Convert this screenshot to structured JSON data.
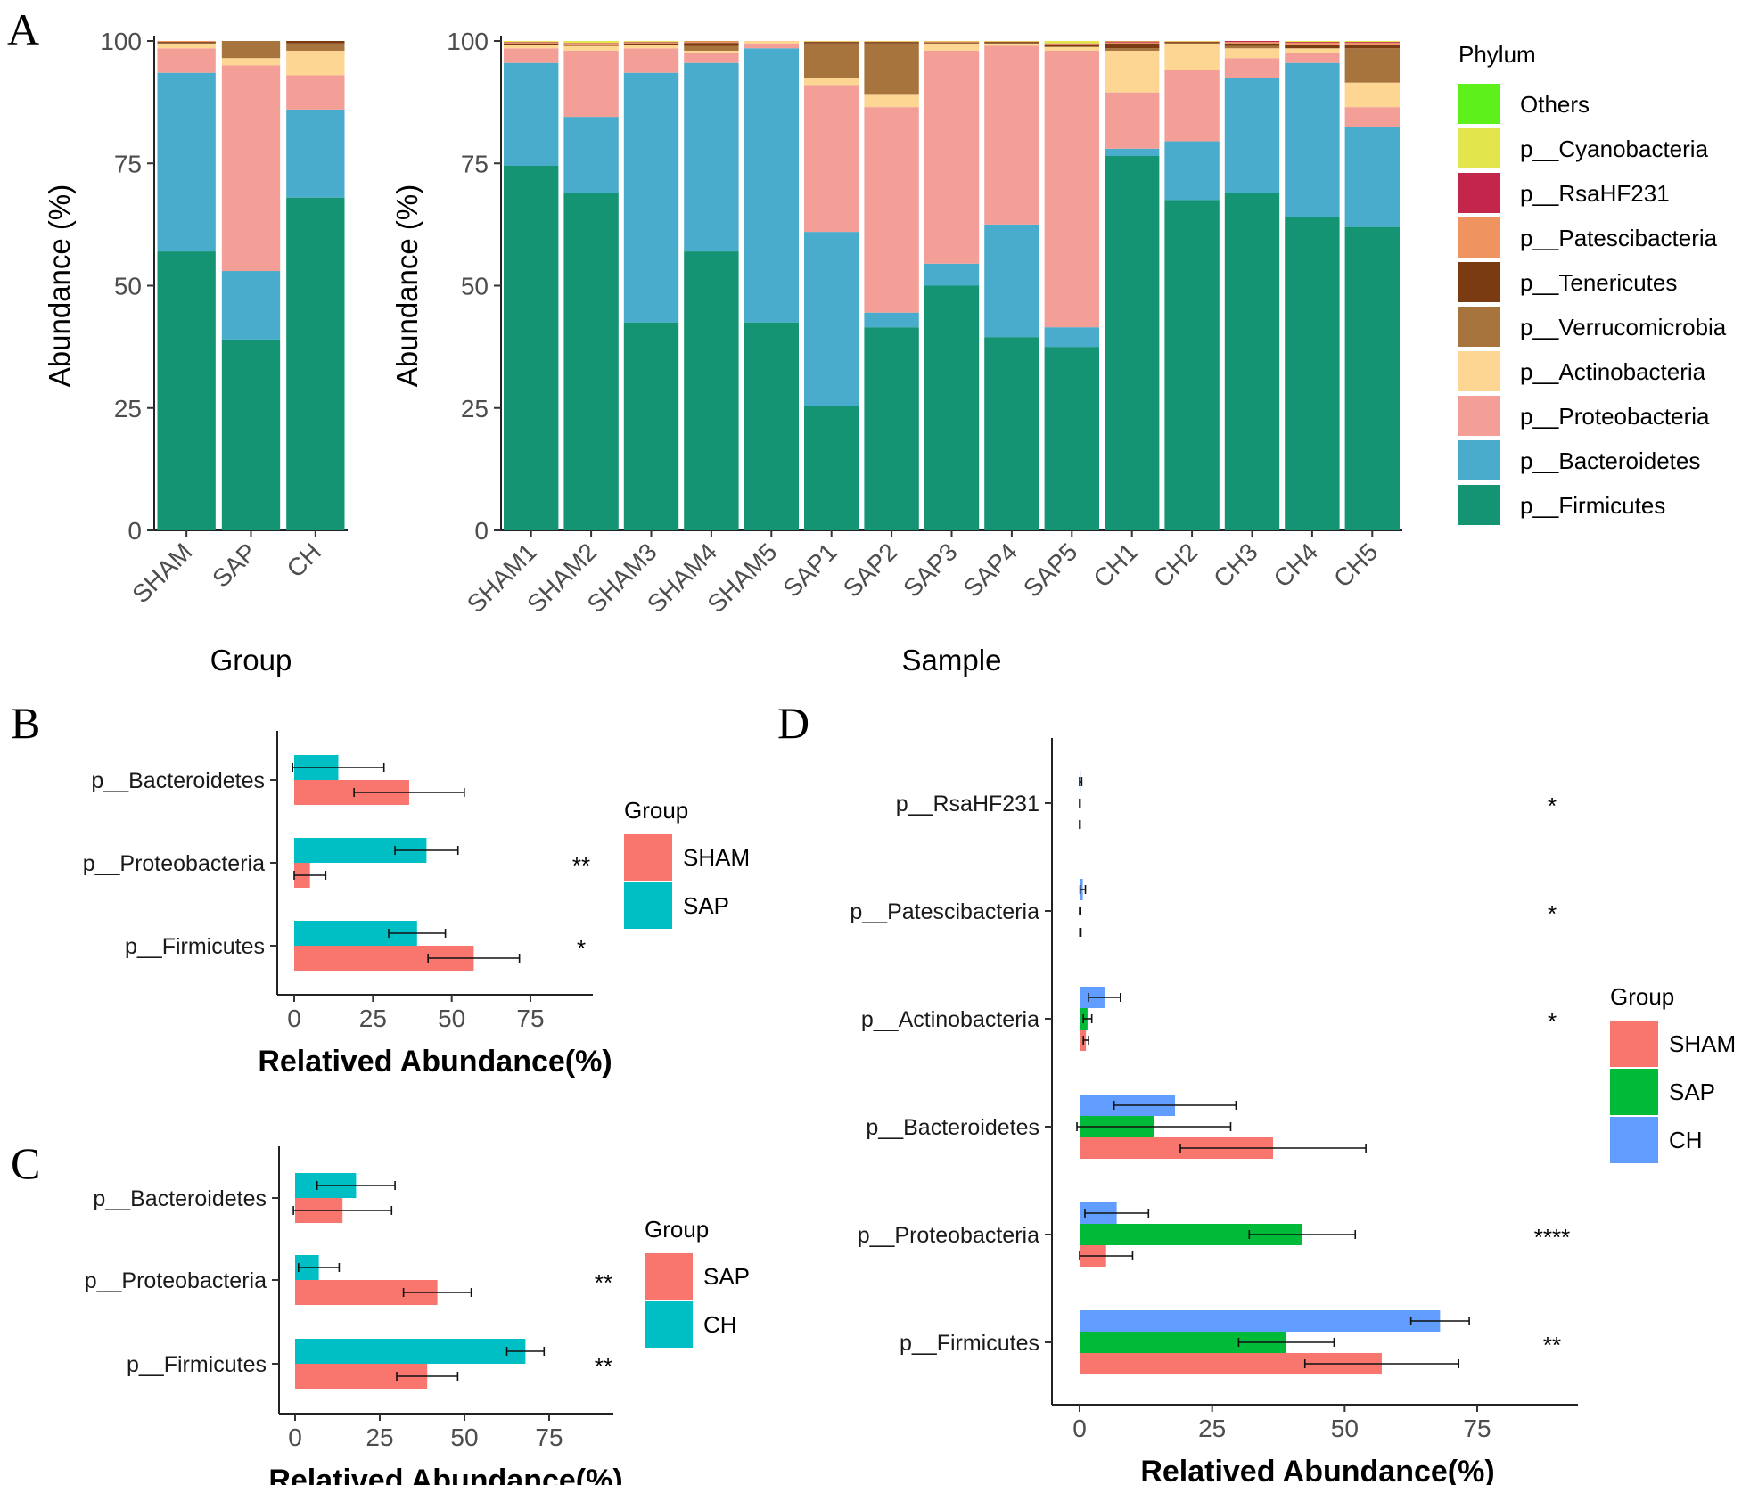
{
  "chart_data": [
    {
      "panel": "A",
      "type": "bar",
      "stacked": true,
      "title": "",
      "xlabel": "Group",
      "ylabel": "Abundance (%)",
      "ylim": [
        0,
        100
      ],
      "yticks": [
        "0",
        "25",
        "50",
        "75",
        "100"
      ],
      "categories": [
        "SHAM",
        "SAP",
        "CH"
      ],
      "series": [
        {
          "name": "p__Firmicutes",
          "values": [
            57,
            39,
            68
          ]
        },
        {
          "name": "p__Bacteroidetes",
          "values": [
            36.5,
            14,
            18
          ]
        },
        {
          "name": "p__Proteobacteria",
          "values": [
            5,
            42,
            7
          ]
        },
        {
          "name": "p__Actinobacteria",
          "values": [
            1,
            1.5,
            5
          ]
        },
        {
          "name": "p__Verrucomicrobia",
          "values": [
            0,
            4,
            1.5
          ]
        },
        {
          "name": "p__Tenericutes",
          "values": [
            0.3,
            0.2,
            0.8
          ]
        },
        {
          "name": "p__Patescibacteria",
          "values": [
            0.3,
            0.1,
            0.4
          ]
        },
        {
          "name": "p__RsaHF231",
          "values": [
            0.1,
            0.1,
            0.3
          ]
        },
        {
          "name": "p__Cyanobacteria",
          "values": [
            0.2,
            0,
            0.4
          ]
        },
        {
          "name": "Others",
          "values": [
            0,
            0.1,
            0.1
          ]
        }
      ]
    },
    {
      "panel": "A",
      "type": "bar",
      "stacked": true,
      "title": "",
      "xlabel": "Sample",
      "ylabel": "Abundance (%)",
      "ylim": [
        0,
        100
      ],
      "yticks": [
        "0",
        "25",
        "50",
        "75",
        "100"
      ],
      "categories": [
        "SHAM1",
        "SHAM2",
        "SHAM3",
        "SHAM4",
        "SHAM5",
        "SAP1",
        "SAP2",
        "SAP3",
        "SAP4",
        "SAP5",
        "CH1",
        "CH2",
        "CH3",
        "CH4",
        "CH5"
      ],
      "series": [
        {
          "name": "p__Firmicutes",
          "values": [
            74.5,
            69,
            42.5,
            57,
            42.5,
            25.5,
            41.5,
            50,
            39.5,
            37.5,
            76.5,
            67.5,
            69,
            64,
            62
          ]
        },
        {
          "name": "p__Bacteroidetes",
          "values": [
            21,
            15.5,
            51,
            38.5,
            56,
            35.5,
            3,
            4.5,
            23,
            4,
            1.5,
            12,
            23.5,
            31.5,
            20.5
          ]
        },
        {
          "name": "p__Proteobacteria",
          "values": [
            3,
            13.5,
            5,
            2,
            1,
            30,
            42,
            43.5,
            36.5,
            56.5,
            11.5,
            14.5,
            4,
            2,
            4
          ]
        },
        {
          "name": "p__Actinobacteria",
          "values": [
            0.7,
            1,
            0.7,
            0.5,
            0.5,
            1.5,
            2.5,
            1.5,
            0.5,
            0.8,
            8.5,
            5.5,
            2,
            1,
            5
          ]
        },
        {
          "name": "p__Verrucomicrobia",
          "values": [
            0,
            0,
            0,
            1,
            0,
            7,
            10.5,
            0,
            0,
            0,
            0.5,
            0,
            0.5,
            0,
            7
          ]
        },
        {
          "name": "p__Tenericutes",
          "values": [
            0.3,
            0.3,
            0.3,
            0.6,
            0,
            0.3,
            0.3,
            0.2,
            0.3,
            0.4,
            1,
            0.3,
            0.5,
            0.8,
            0.8
          ]
        },
        {
          "name": "p__Patescibacteria",
          "values": [
            0.2,
            0.2,
            0.2,
            0.2,
            0,
            0.1,
            0.1,
            0.2,
            0.1,
            0.2,
            0.2,
            0.1,
            0.3,
            0.3,
            0.3
          ]
        },
        {
          "name": "p__RsaHF231",
          "values": [
            0.1,
            0.1,
            0.1,
            0.1,
            0,
            0,
            0,
            0,
            0,
            0.1,
            0.2,
            0,
            0.2,
            0.2,
            0.2
          ]
        },
        {
          "name": "p__Cyanobacteria",
          "values": [
            0.2,
            0.4,
            0.2,
            0.1,
            0,
            0.1,
            0.1,
            0.1,
            0.1,
            0.5,
            0.1,
            0.1,
            0.1,
            0.2,
            0.2
          ]
        },
        {
          "name": "Others",
          "values": [
            0,
            0,
            0,
            0,
            0,
            0,
            0,
            0,
            0,
            0,
            0,
            0,
            0,
            0,
            1
          ]
        }
      ]
    },
    {
      "panel": "B",
      "type": "bar",
      "orientation": "horizontal",
      "xlabel": "Relatived Abundance(%)",
      "xticks": [
        "0",
        "25",
        "50",
        "75"
      ],
      "categories": [
        "p__Bacteroidetes",
        "p__Proteobacteria",
        "p__Firmicutes"
      ],
      "legend_title": "Group",
      "series": [
        {
          "name": "SHAM",
          "values": [
            36.5,
            5,
            57
          ],
          "errors": [
            17.5,
            5,
            14.5
          ]
        },
        {
          "name": "SAP",
          "values": [
            14,
            42,
            39
          ],
          "errors": [
            14.5,
            10,
            9
          ]
        }
      ],
      "significance": [
        "",
        "**",
        "*"
      ]
    },
    {
      "panel": "C",
      "type": "bar",
      "orientation": "horizontal",
      "xlabel": "Relatived Abundance(%)",
      "xticks": [
        "0",
        "25",
        "50",
        "75"
      ],
      "categories": [
        "p__Bacteroidetes",
        "p__Proteobacteria",
        "p__Firmicutes"
      ],
      "legend_title": "Group",
      "series": [
        {
          "name": "SAP",
          "values": [
            14,
            42,
            39
          ],
          "errors": [
            14.5,
            10,
            9
          ]
        },
        {
          "name": "CH",
          "values": [
            18,
            7,
            68
          ],
          "errors": [
            11.5,
            6,
            5.5
          ]
        }
      ],
      "significance": [
        "",
        "**",
        "**"
      ]
    },
    {
      "panel": "D",
      "type": "bar",
      "orientation": "horizontal",
      "xlabel": "Relatived Abundance(%)",
      "xticks": [
        "0",
        "25",
        "50",
        "75"
      ],
      "categories": [
        "p__RsaHF231",
        "p__Patescibacteria",
        "p__Actinobacteria",
        "p__Bacteroidetes",
        "p__Proteobacteria",
        "p__Firmicutes"
      ],
      "legend_title": "Group",
      "series": [
        {
          "name": "SHAM",
          "values": [
            0.05,
            0.15,
            1.2,
            36.5,
            5,
            57
          ],
          "errors": [
            0.05,
            0.1,
            0.5,
            17.5,
            5,
            14.5
          ]
        },
        {
          "name": "SAP",
          "values": [
            0.05,
            0.1,
            1.5,
            14,
            42,
            39
          ],
          "errors": [
            0.05,
            0.1,
            0.8,
            14.5,
            10,
            9
          ]
        },
        {
          "name": "CH",
          "values": [
            0.2,
            0.6,
            4.7,
            18,
            7,
            68
          ],
          "errors": [
            0.2,
            0.5,
            3,
            11.5,
            6,
            5.5
          ]
        }
      ],
      "significance": [
        "*",
        "*",
        "*",
        "",
        "****",
        "**"
      ]
    }
  ],
  "panel_labels": [
    "A",
    "B",
    "C",
    "D"
  ],
  "phylum_legend": {
    "title": "Phylum",
    "items": [
      "Others",
      "p__Cyanobacteria",
      "p__RsaHF231",
      "p__Patescibacteria",
      "p__Tenericutes",
      "p__Verrucomicrobia",
      "p__Actinobacteria",
      "p__Proteobacteria",
      "p__Bacteroidetes",
      "p__Firmicutes"
    ]
  },
  "colors": {
    "p__Firmicutes": "#149472",
    "p__Bacteroidetes": "#4aaccc",
    "p__Proteobacteria": "#f39f98",
    "p__Actinobacteria": "#fcd692",
    "p__Verrucomicrobia": "#a8743e",
    "p__Tenericutes": "#7a3b12",
    "p__Patescibacteria": "#ef9360",
    "p__RsaHF231": "#c4254a",
    "p__Cyanobacteria": "#e2e64c",
    "Others": "#5df01a",
    "SHAM": "#f8766d",
    "SAP_two_group": "#00bfc4",
    "SAP_three_group": "#00ba38",
    "CH_two_group": "#00bfc4",
    "CH_three_group": "#619cff"
  }
}
